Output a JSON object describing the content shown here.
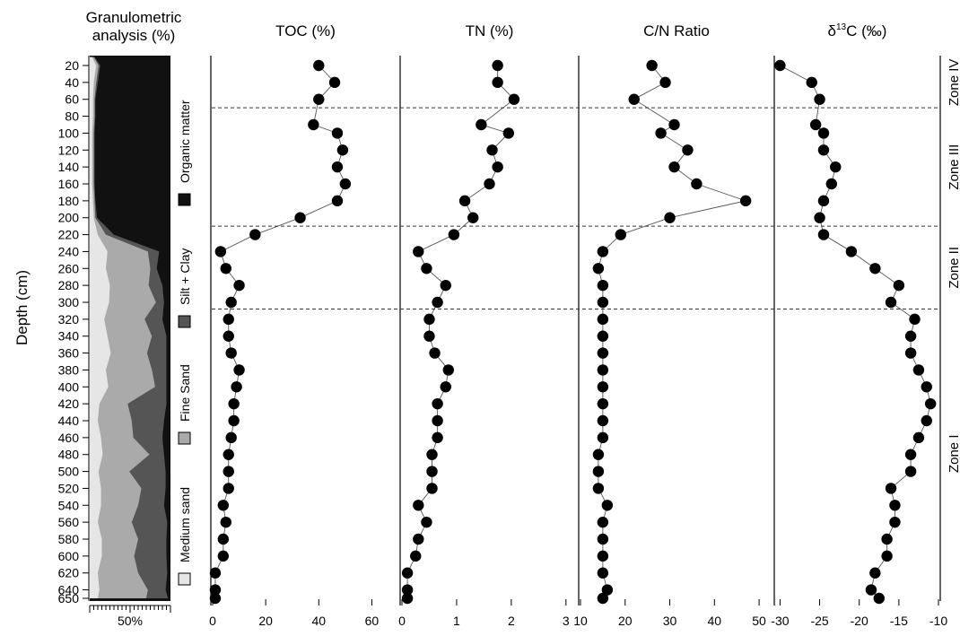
{
  "chart_data": {
    "type": "scatter",
    "y_axis": {
      "label": "Depth (cm)",
      "ylim": [
        650,
        10
      ],
      "ticks": [
        20,
        40,
        60,
        80,
        100,
        120,
        140,
        160,
        180,
        200,
        220,
        240,
        260,
        280,
        300,
        320,
        340,
        360,
        380,
        400,
        420,
        440,
        460,
        480,
        500,
        520,
        540,
        560,
        580,
        600,
        620,
        640,
        650
      ]
    },
    "depths": [
      20,
      40,
      60,
      90,
      100,
      120,
      140,
      160,
      180,
      200,
      220,
      240,
      260,
      280,
      300,
      320,
      340,
      360,
      380,
      400,
      420,
      440,
      460,
      480,
      500,
      520,
      540,
      560,
      580,
      600,
      620,
      640,
      650
    ],
    "panels": [
      {
        "key": "toc",
        "title_main": "TOC (%)",
        "title_sup": "",
        "title_tail": "",
        "xlim": [
          0,
          70
        ],
        "x_ticks": [
          "0",
          "20",
          "40",
          "60"
        ],
        "x_tick_values": [
          0,
          20,
          40,
          60
        ],
        "values": [
          40,
          46,
          40,
          38,
          47,
          49,
          47,
          50,
          47,
          33,
          16,
          3,
          5,
          10,
          7,
          6,
          6,
          7,
          10,
          9,
          8,
          8,
          7,
          6,
          6,
          6,
          4,
          5,
          4,
          4,
          1,
          1,
          1
        ]
      },
      {
        "key": "tn",
        "title_main": "TN (%)",
        "title_sup": "",
        "title_tail": "",
        "xlim": [
          0,
          3.2
        ],
        "x_ticks": [
          "0",
          "1",
          "2",
          "3"
        ],
        "x_tick_values": [
          0,
          1,
          2,
          3
        ],
        "values": [
          1.75,
          1.75,
          2.05,
          1.45,
          1.95,
          1.65,
          1.75,
          1.6,
          1.15,
          1.3,
          0.95,
          0.3,
          0.45,
          0.8,
          0.65,
          0.5,
          0.5,
          0.6,
          0.85,
          0.8,
          0.65,
          0.65,
          0.65,
          0.55,
          0.55,
          0.55,
          0.3,
          0.45,
          0.3,
          0.25,
          0.1,
          0.1,
          0.1
        ]
      },
      {
        "key": "cn",
        "title_main": "C/N Ratio",
        "title_sup": "",
        "title_tail": "",
        "xlim": [
          10,
          53
        ],
        "x_ticks": [
          "10",
          "20",
          "30",
          "40",
          "50"
        ],
        "x_tick_values": [
          10,
          20,
          30,
          40,
          50
        ],
        "values": [
          26,
          29,
          22,
          31,
          28,
          34,
          31,
          36,
          47,
          30,
          19,
          15,
          14,
          15,
          15,
          15,
          15,
          15,
          15,
          15,
          15,
          15,
          15,
          14,
          14,
          14,
          16,
          15,
          15,
          15,
          15,
          16,
          15
        ]
      },
      {
        "key": "d13c",
        "title_main": "δ",
        "title_sup": "13",
        "title_tail": "C (‰)",
        "xlim": [
          -30.5,
          -10
        ],
        "x_ticks": [
          "-30",
          "-25",
          "-20",
          "-15",
          "-10"
        ],
        "x_tick_values": [
          -30,
          -25,
          -20,
          -15,
          -10
        ],
        "values": [
          -30,
          -26,
          -25,
          -25.5,
          -24.5,
          -24.5,
          -23,
          -23.5,
          -24.5,
          -25,
          -24.5,
          -21,
          -18,
          -15,
          -16,
          -13,
          -13.5,
          -13.5,
          -12.5,
          -11.5,
          -11,
          -11.5,
          -12.5,
          -13.5,
          -13.5,
          -16,
          -15.5,
          -15.5,
          -16.5,
          -16.5,
          -18,
          -18.5,
          -17.5
        ]
      }
    ],
    "granulometric": {
      "title_line1": "Granulometric",
      "title_line2": "analysis (%)",
      "x_tick_label": "50%",
      "legend": [
        {
          "label": "Organic matter",
          "color": "#111111"
        },
        {
          "label": "Silt + Clay",
          "color": "#555555"
        },
        {
          "label": "Fine Sand",
          "color": "#aaaaaa"
        },
        {
          "label": "Medium sand",
          "color": "#e6e6e6"
        }
      ],
      "depths": [
        10,
        20,
        40,
        60,
        80,
        100,
        120,
        140,
        160,
        180,
        200,
        220,
        240,
        260,
        280,
        300,
        320,
        340,
        360,
        380,
        400,
        420,
        440,
        460,
        480,
        500,
        520,
        540,
        560,
        580,
        600,
        620,
        640,
        650
      ],
      "medium_sand": [
        3,
        8,
        5,
        4,
        4,
        3,
        3,
        3,
        3,
        4,
        5,
        10,
        22,
        20,
        25,
        24,
        18,
        22,
        26,
        20,
        23,
        12,
        10,
        14,
        16,
        11,
        14,
        14,
        10,
        15,
        15,
        10,
        12,
        10
      ],
      "fine_sand": [
        2,
        3,
        3,
        2,
        2,
        2,
        2,
        2,
        2,
        2,
        2,
        10,
        50,
        55,
        48,
        58,
        50,
        55,
        45,
        57,
        58,
        35,
        42,
        40,
        58,
        38,
        50,
        46,
        42,
        45,
        40,
        50,
        60,
        60
      ],
      "silt_clay": [
        1,
        2,
        2,
        1,
        1,
        1,
        1,
        1,
        1,
        1,
        2,
        10,
        14,
        8,
        17,
        10,
        22,
        18,
        24,
        18,
        14,
        48,
        40,
        36,
        18,
        45,
        30,
        32,
        44,
        35,
        40,
        36,
        22,
        27
      ]
    },
    "zones": [
      {
        "label": "Zone IV",
        "from": 10,
        "to": 70
      },
      {
        "label": "Zone III",
        "from": 70,
        "to": 210
      },
      {
        "label": "Zone II",
        "from": 210,
        "to": 308
      },
      {
        "label": "Zone I",
        "from": 308,
        "to": 650
      }
    ],
    "boundaries": [
      70,
      210,
      308
    ],
    "grid": false,
    "point_color": "#000000",
    "line_color": "#555555"
  }
}
